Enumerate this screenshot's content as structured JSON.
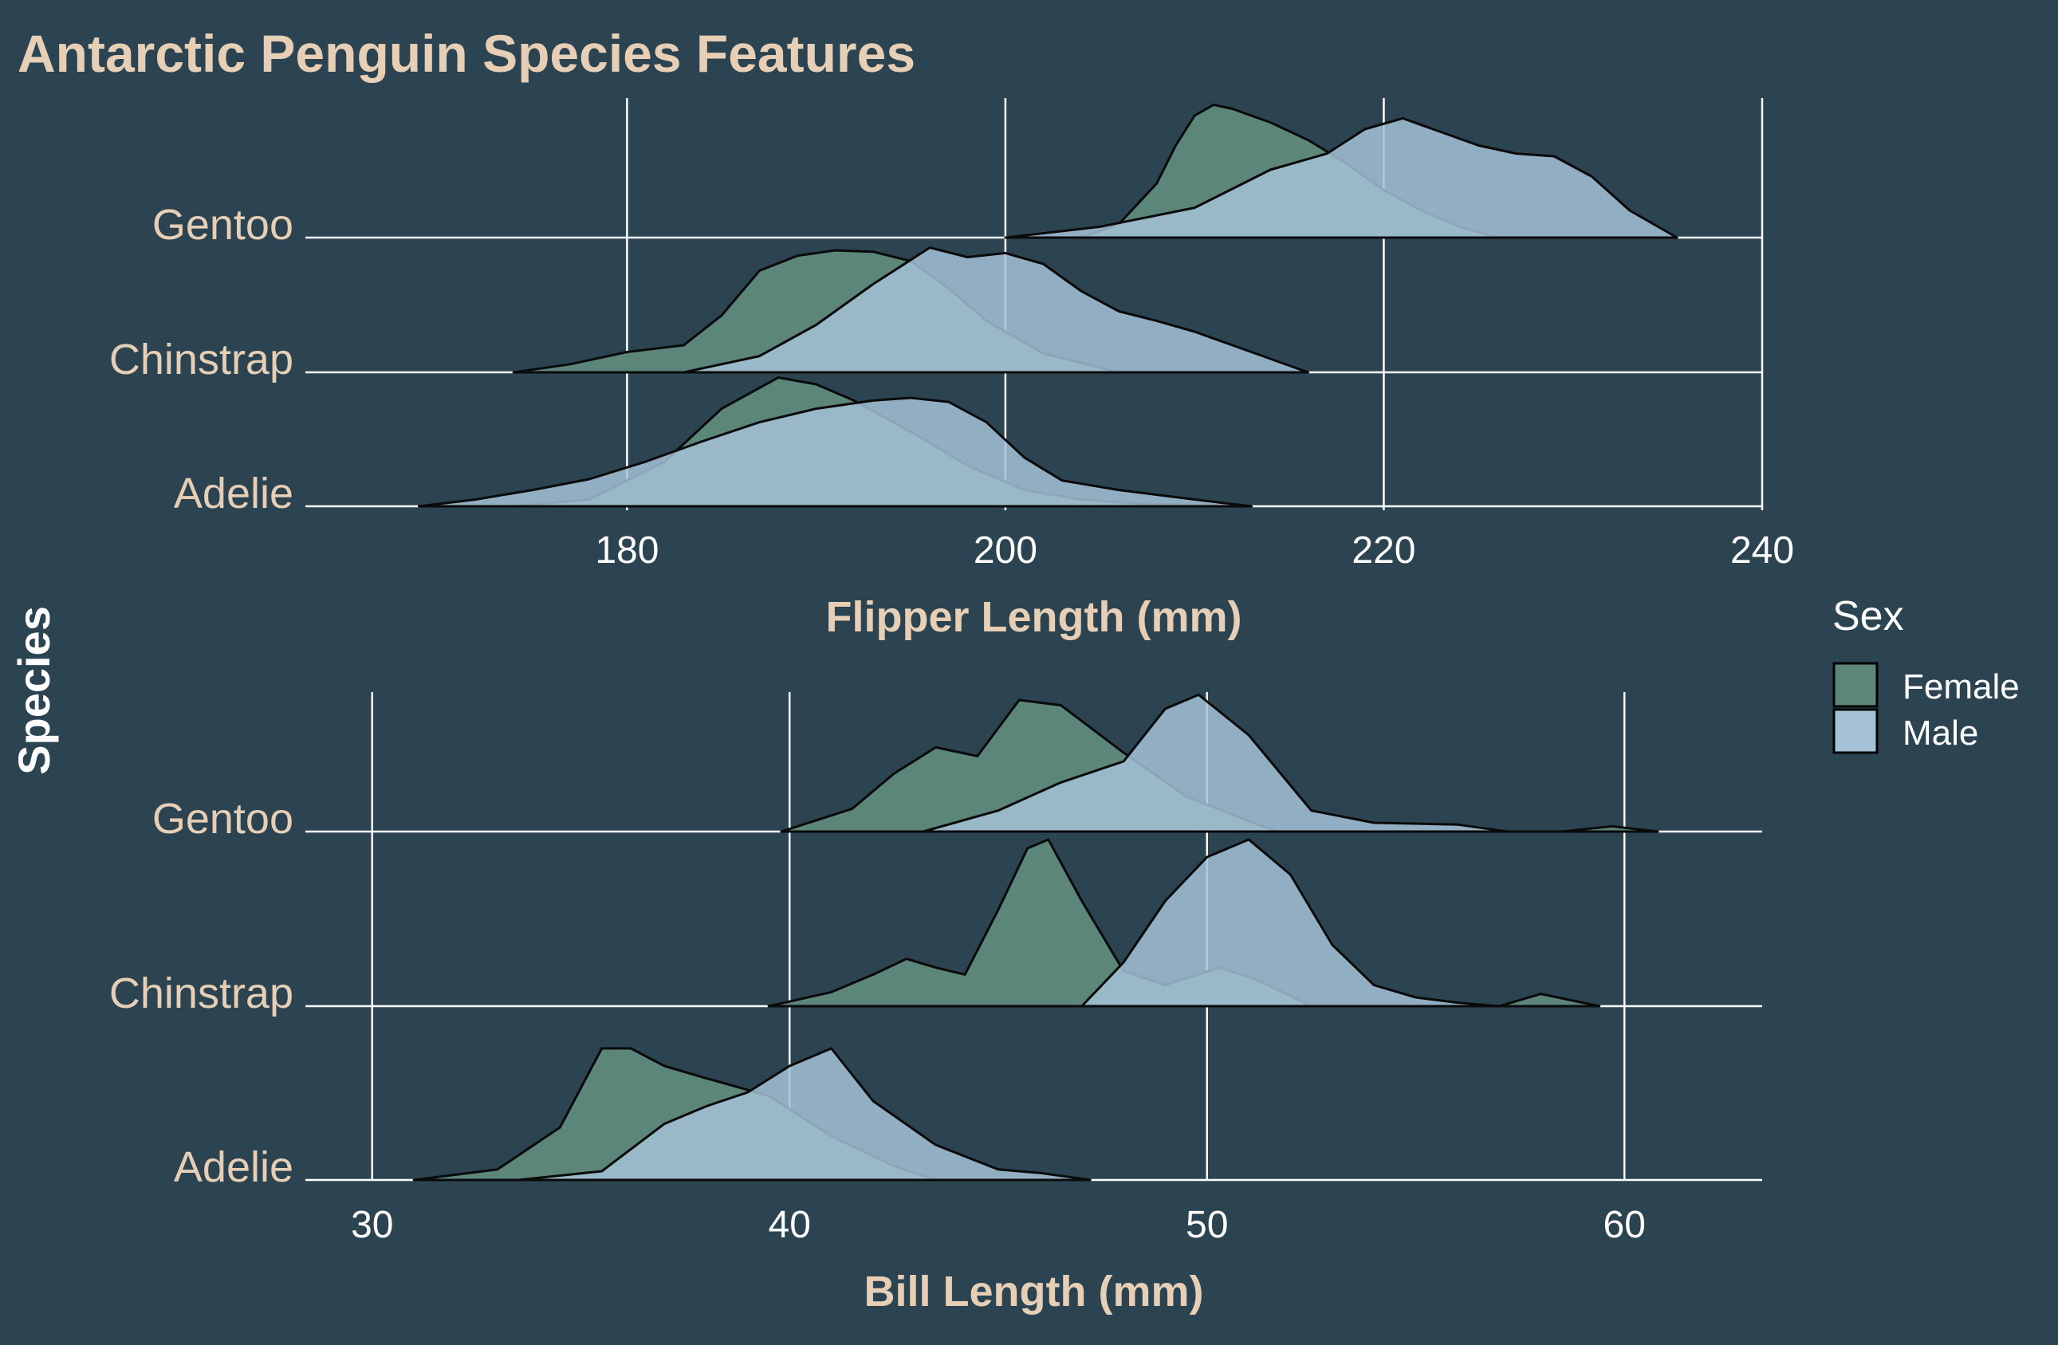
{
  "title": "Antarctic Penguin Species Features",
  "y_axis_label": "Species",
  "colors": {
    "background": "#2c4452",
    "female": "#5b8679",
    "male": "#a4c1d6",
    "overlap": "#b1d3df",
    "title": "#e7cfb6",
    "grid": "#ffffff"
  },
  "legend": {
    "title": "Sex",
    "items": [
      {
        "label": "Female",
        "color": "#5b8679"
      },
      {
        "label": "Male",
        "color": "#a4c1d6"
      }
    ]
  },
  "chart_data": [
    {
      "type": "ridgeline-density",
      "xlabel": "Flipper Length (mm)",
      "ylabel": "Species",
      "categories": [
        "Adelie",
        "Chinstrap",
        "Gentoo"
      ],
      "xlim": [
        163,
        240
      ],
      "xticks": [
        "180",
        "200",
        "220",
        "240"
      ],
      "series": [
        {
          "name": "Female",
          "groups": [
            {
              "species": "Adelie",
              "x": [
                174,
                178,
                182,
                185,
                188,
                190,
                192,
                195,
                198,
                201,
                204,
                207,
                210,
                213
              ],
              "density": [
                0,
                0.05,
                0.33,
                0.72,
                0.95,
                0.9,
                0.78,
                0.55,
                0.3,
                0.12,
                0.05,
                0.02,
                0.01,
                0
              ]
            },
            {
              "species": "Chinstrap",
              "x": [
                174,
                177,
                180,
                183,
                185,
                187,
                189,
                191,
                193,
                195,
                197,
                199,
                202,
                206
              ],
              "density": [
                0,
                0.06,
                0.15,
                0.2,
                0.42,
                0.75,
                0.86,
                0.9,
                0.89,
                0.82,
                0.62,
                0.38,
                0.14,
                0
              ]
            },
            {
              "species": "Gentoo",
              "x": [
                204,
                206,
                208,
                209,
                210,
                211,
                212,
                214,
                216,
                218,
                220,
                222,
                224,
                226
              ],
              "density": [
                0,
                0.1,
                0.4,
                0.68,
                0.9,
                0.98,
                0.95,
                0.85,
                0.72,
                0.55,
                0.35,
                0.2,
                0.08,
                0
              ]
            }
          ]
        },
        {
          "name": "Male",
          "groups": [
            {
              "species": "Adelie",
              "x": [
                169,
                172,
                175,
                178,
                181,
                184,
                187,
                190,
                193,
                195,
                197,
                199,
                201,
                203,
                206,
                210,
                213
              ],
              "density": [
                0,
                0.05,
                0.12,
                0.2,
                0.33,
                0.48,
                0.62,
                0.72,
                0.78,
                0.8,
                0.77,
                0.62,
                0.36,
                0.19,
                0.12,
                0.05,
                0
              ],
              "label_values": []
            },
            {
              "species": "Chinstrap",
              "x": [
                183,
                187,
                190,
                193,
                196,
                198,
                200,
                202,
                204,
                206,
                208,
                210,
                213,
                216
              ],
              "density": [
                0,
                0.12,
                0.35,
                0.65,
                0.92,
                0.85,
                0.88,
                0.8,
                0.6,
                0.45,
                0.38,
                0.3,
                0.15,
                0
              ]
            },
            {
              "species": "Gentoo",
              "x": [
                200,
                205,
                210,
                214,
                217,
                219,
                221,
                223,
                225,
                227,
                229,
                231,
                233,
                235.5
              ],
              "density": [
                0,
                0.08,
                0.22,
                0.5,
                0.62,
                0.8,
                0.88,
                0.78,
                0.68,
                0.62,
                0.6,
                0.45,
                0.2,
                0
              ]
            }
          ]
        }
      ]
    },
    {
      "type": "ridgeline-density",
      "xlabel": "Bill Length (mm)",
      "ylabel": "Species",
      "categories": [
        "Adelie",
        "Chinstrap",
        "Gentoo"
      ],
      "xlim": [
        28.4,
        63.3
      ],
      "xticks": [
        "30",
        "40",
        "50",
        "60"
      ],
      "series": [
        {
          "name": "Female",
          "groups": [
            {
              "species": "Adelie",
              "x": [
                31,
                33,
                34.5,
                35.5,
                36.2,
                37,
                38,
                39.5,
                41,
                42.5,
                43.5
              ],
              "density": [
                0,
                0.06,
                0.3,
                0.75,
                0.75,
                0.65,
                0.58,
                0.48,
                0.25,
                0.08,
                0
              ]
            },
            {
              "species": "Chinstrap",
              "x": [
                39.5,
                41,
                42,
                42.8,
                43.5,
                44.2,
                45,
                45.7,
                46.2,
                47,
                48,
                49,
                50.3,
                51.2,
                52.5,
                57,
                58,
                59.4
              ],
              "density": [
                0,
                0.08,
                0.18,
                0.27,
                0.22,
                0.18,
                0.55,
                0.9,
                0.95,
                0.6,
                0.2,
                0.12,
                0.22,
                0.15,
                0,
                0,
                0.07,
                0
              ]
            },
            {
              "species": "Gentoo",
              "x": [
                39.8,
                41.5,
                42.5,
                43.5,
                44.5,
                45.5,
                46.5,
                48,
                49.5,
                51,
                51.7,
                58.5,
                59.7,
                60.8
              ],
              "density": [
                0,
                0.13,
                0.33,
                0.48,
                0.43,
                0.75,
                0.72,
                0.45,
                0.2,
                0.06,
                0,
                0,
                0.03,
                0
              ]
            }
          ]
        },
        {
          "name": "Male",
          "groups": [
            {
              "species": "Adelie",
              "x": [
                33.5,
                35.5,
                37,
                38,
                39,
                40,
                41,
                42,
                43.5,
                45,
                46,
                47.2
              ],
              "density": [
                0,
                0.05,
                0.32,
                0.42,
                0.5,
                0.65,
                0.75,
                0.45,
                0.2,
                0.06,
                0.04,
                0
              ]
            },
            {
              "species": "Chinstrap",
              "x": [
                47,
                48,
                49,
                50,
                51,
                52,
                53,
                54,
                55,
                56,
                57
              ],
              "density": [
                0,
                0.25,
                0.6,
                0.85,
                0.95,
                0.75,
                0.35,
                0.12,
                0.05,
                0.02,
                0
              ]
            },
            {
              "species": "Gentoo",
              "x": [
                43.2,
                45,
                46.5,
                48,
                49,
                49.8,
                51,
                52.5,
                54,
                56,
                57.2
              ],
              "density": [
                0,
                0.12,
                0.28,
                0.4,
                0.7,
                0.78,
                0.55,
                0.12,
                0.05,
                0.04,
                0
              ]
            }
          ]
        }
      ]
    }
  ]
}
